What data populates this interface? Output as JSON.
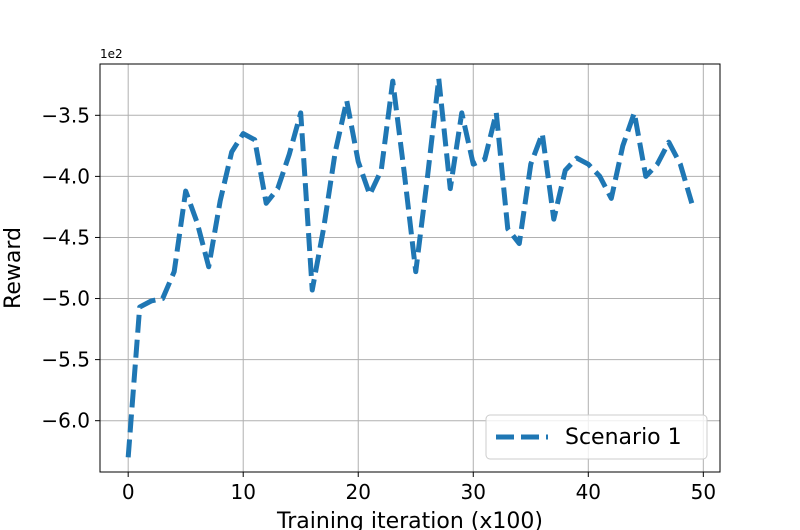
{
  "chart_data": {
    "type": "line",
    "title": "",
    "xlabel": "Training iteration (x100)",
    "ylabel": "Reward",
    "y_offset_text": "1e2",
    "xlim": [
      -2.45,
      51.45
    ],
    "ylim": [
      -6.42,
      -3.08
    ],
    "xticks": [
      0,
      10,
      20,
      30,
      40,
      50
    ],
    "yticks": [
      -6.0,
      -5.5,
      -5.0,
      -4.5,
      -4.0,
      -3.5
    ],
    "grid": true,
    "legend_position": "lower-right",
    "series": [
      {
        "name": "Scenario 1",
        "color": "#1f77b4",
        "style": "dashed",
        "x": [
          0,
          1,
          2,
          3,
          4,
          5,
          6,
          7,
          8,
          9,
          10,
          11,
          12,
          13,
          14,
          15,
          16,
          17,
          18,
          19,
          20,
          21,
          22,
          23,
          24,
          25,
          26,
          27,
          28,
          29,
          30,
          31,
          32,
          33,
          34,
          35,
          36,
          37,
          38,
          39,
          40,
          41,
          42,
          43,
          44,
          45,
          46,
          47,
          48,
          49
        ],
        "y": [
          -6.3,
          -5.07,
          -5.02,
          -5.0,
          -4.78,
          -4.12,
          -4.38,
          -4.74,
          -4.2,
          -3.8,
          -3.65,
          -3.7,
          -4.22,
          -4.1,
          -3.82,
          -3.48,
          -4.93,
          -4.42,
          -3.8,
          -3.38,
          -3.88,
          -4.15,
          -3.95,
          -3.22,
          -3.97,
          -4.78,
          -4.02,
          -3.2,
          -4.1,
          -3.48,
          -3.9,
          -3.86,
          -3.48,
          -4.43,
          -4.55,
          -3.9,
          -3.65,
          -4.35,
          -3.95,
          -3.85,
          -3.9,
          -4.0,
          -4.18,
          -3.75,
          -3.48,
          -4.0,
          -3.9,
          -3.72,
          -3.9,
          -4.22
        ]
      }
    ]
  }
}
